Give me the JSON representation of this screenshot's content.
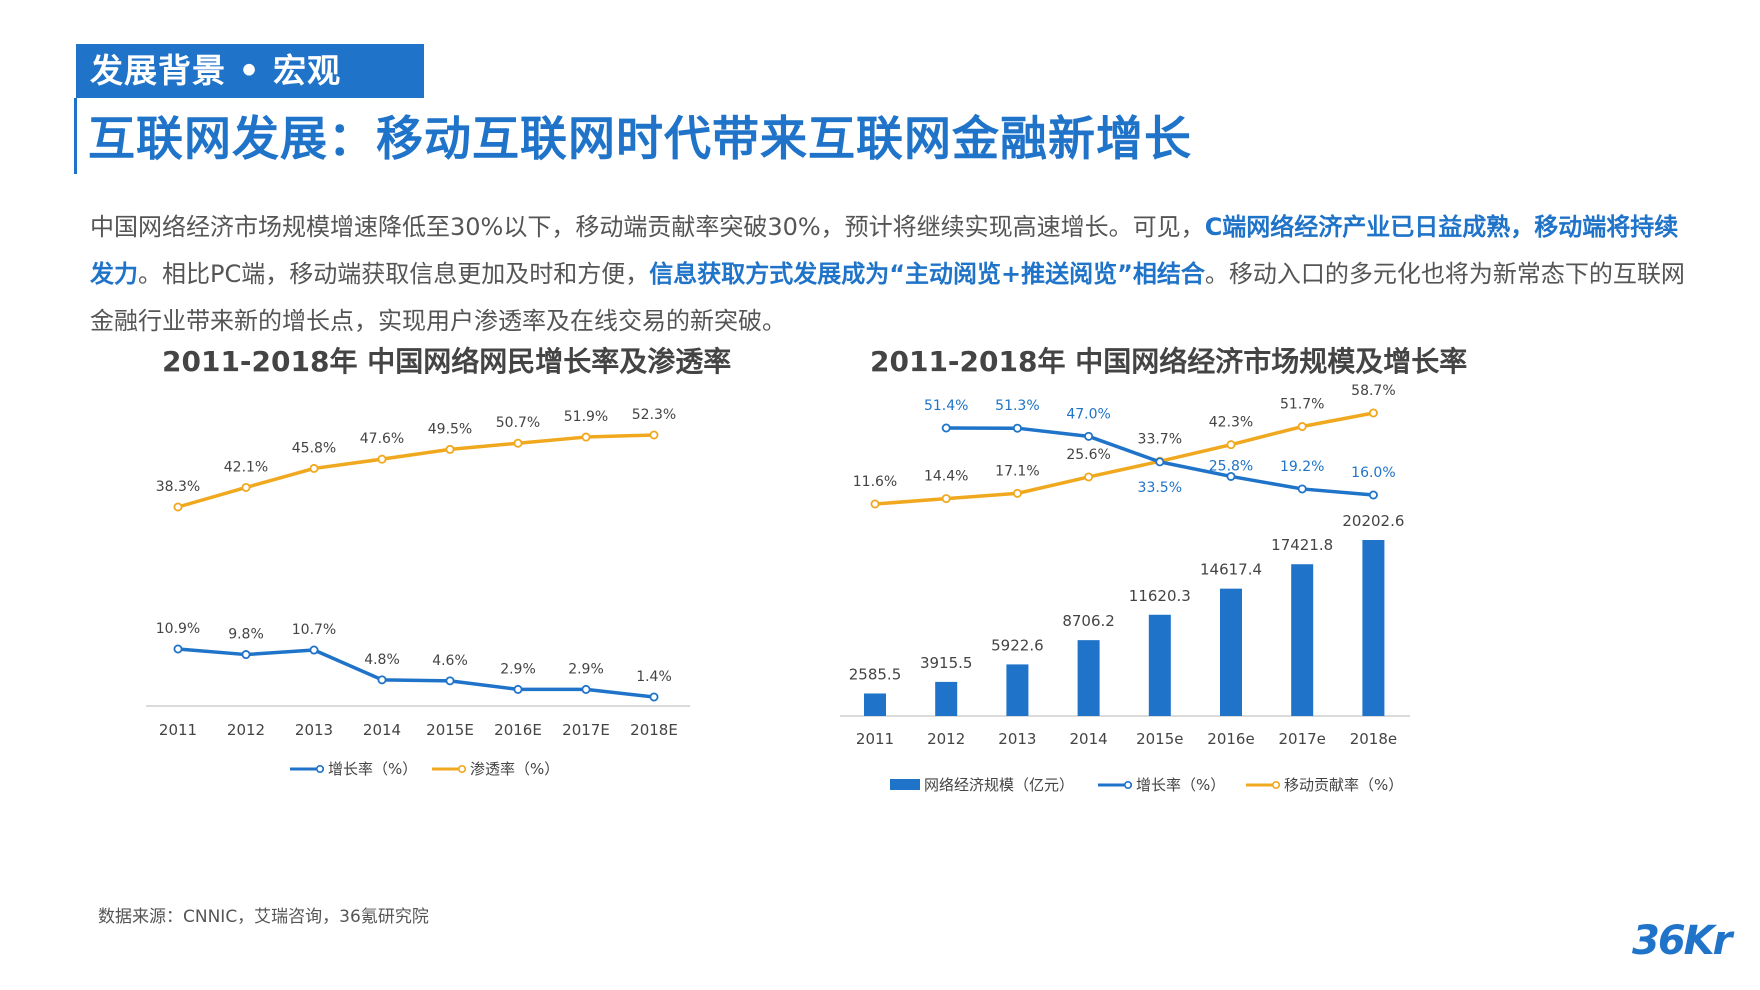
{
  "header": {
    "section_tag": "发展背景 • 宏观",
    "title": "互联网发展：移动互联网时代带来互联网金融新增长"
  },
  "intro": {
    "p1": "中国网络经济市场规模增速降低至30%以下，移动端贡献率突破30%，预计将继续实现高速增长。可见，",
    "h1": "C端网络经济产业已日益成熟，移动端将持续发力",
    "p2": "。相比PC端，移动端获取信息更加及时和方便，",
    "h2": "信息获取方式发展成为“主动阅览+推送阅览”相结合",
    "p3": "。移动入口的多元化也将为新常态下的互联网金融行业带来新的增长点，实现用户渗透率及在线交易的新突破。"
  },
  "source": "数据来源：CNNIC，艾瑞咨询，36氪研究院",
  "logo": "36Kr",
  "colors": {
    "blue": "#1f73c8",
    "orange": "#f0a81e"
  },
  "chart_data": [
    {
      "type": "line",
      "title": "2011-2018年 中国网络网民增长率及渗透率",
      "categories": [
        "2011",
        "2012",
        "2013",
        "2014",
        "2015E",
        "2016E",
        "2017E",
        "2018E"
      ],
      "series": [
        {
          "name": "增长率（%）",
          "values": [
            10.9,
            9.8,
            10.7,
            4.8,
            4.6,
            2.9,
            2.9,
            1.4
          ],
          "labels": [
            "10.9%",
            "9.8%",
            "10.7%",
            "4.8%",
            "4.6%",
            "2.9%",
            "2.9%",
            "1.4%"
          ]
        },
        {
          "name": "渗透率（%）",
          "values": [
            38.3,
            42.1,
            45.8,
            47.6,
            49.5,
            50.7,
            51.9,
            52.3
          ],
          "labels": [
            "38.3%",
            "42.1%",
            "45.8%",
            "47.6%",
            "49.5%",
            "50.7%",
            "51.9%",
            "52.3%"
          ]
        }
      ]
    },
    {
      "type": "bar+line",
      "title": "2011-2018年 中国网络经济市场规模及增长率",
      "categories": [
        "2011",
        "2012",
        "2013",
        "2014",
        "2015e",
        "2016e",
        "2017e",
        "2018e"
      ],
      "bars": {
        "name": "网络经济规模（亿元）",
        "values": [
          2585.5,
          3915.5,
          5922.6,
          8706.2,
          11620.3,
          14617.4,
          17421.8,
          20202.6
        ],
        "labels": [
          "2585.5",
          "3915.5",
          "5922.6",
          "8706.2",
          "11620.3",
          "14617.4",
          "17421.8",
          "20202.6"
        ]
      },
      "series": [
        {
          "name": "增长率（%）",
          "values": [
            null,
            51.4,
            51.3,
            47.0,
            33.5,
            25.8,
            19.2,
            16.0
          ],
          "labels": [
            "",
            "51.4%",
            "51.3%",
            "47.0%",
            "33.5%",
            "25.8%",
            "19.2%",
            "16.0%"
          ]
        },
        {
          "name": "移动贡献率（%）",
          "values": [
            11.6,
            14.4,
            17.1,
            25.6,
            33.7,
            42.3,
            51.7,
            58.7
          ],
          "labels": [
            "11.6%",
            "14.4%",
            "17.1%",
            "25.6%",
            "33.7%",
            "42.3%",
            "51.7%",
            "58.7%"
          ]
        }
      ]
    }
  ]
}
